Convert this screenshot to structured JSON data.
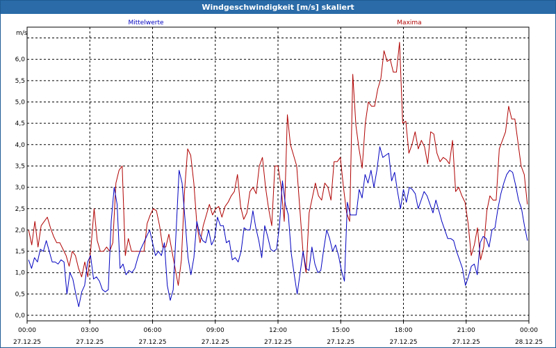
{
  "window": {
    "title": "Windgeschwindigkeit [m/s] skaliert"
  },
  "colors": {
    "titlebar": "#2a6ba8",
    "mean": "#0000c0",
    "max": "#b00000",
    "grid": "#000000"
  },
  "chart_data": {
    "type": "line",
    "title": "Windgeschwindigkeit [m/s] skaliert",
    "ylabel": "m/s",
    "xlabel": "",
    "ylim": [
      -0.1,
      6.55
    ],
    "xlim_hours": [
      0,
      24
    ],
    "y_ticks": [
      "0,0",
      "0,5",
      "1,0",
      "1,5",
      "2,0",
      "2,5",
      "3,0",
      "3,5",
      "4,0",
      "4,5",
      "5,0",
      "5,5",
      "6,0"
    ],
    "x_ticks": [
      {
        "time": "00:00",
        "date": "27.12.25"
      },
      {
        "time": "03:00",
        "date": "27.12.25"
      },
      {
        "time": "06:00",
        "date": "27.12.25"
      },
      {
        "time": "09:00",
        "date": "27.12.25"
      },
      {
        "time": "12:00",
        "date": "27.12.25"
      },
      {
        "time": "15:00",
        "date": "27.12.25"
      },
      {
        "time": "18:00",
        "date": "27.12.25"
      },
      {
        "time": "21:00",
        "date": "27.12.25"
      },
      {
        "time": "00:00",
        "date": "28.12.25"
      }
    ],
    "grid": true,
    "sample_interval_minutes": 10,
    "series": [
      {
        "name": "Mittelwerte",
        "color": "#0000c0",
        "values": [
          1.3,
          1.1,
          1.35,
          1.25,
          1.55,
          1.5,
          1.75,
          1.5,
          1.25,
          1.25,
          1.2,
          1.3,
          1.25,
          0.5,
          1.0,
          0.85,
          0.5,
          0.2,
          0.55,
          0.7,
          1.25,
          1.4,
          0.85,
          0.9,
          0.8,
          0.6,
          0.55,
          0.6,
          2.2,
          3.0,
          2.6,
          1.1,
          1.2,
          0.95,
          1.05,
          1.0,
          1.1,
          1.35,
          1.55,
          1.7,
          1.85,
          2.0,
          1.7,
          1.4,
          1.5,
          1.4,
          1.7,
          0.7,
          0.35,
          0.6,
          2.0,
          3.4,
          3.1,
          2.25,
          1.35,
          0.95,
          1.35,
          2.2,
          1.9,
          1.75,
          1.7,
          2.0,
          1.65,
          1.8,
          2.3,
          2.1,
          2.1,
          1.7,
          1.75,
          1.3,
          1.35,
          1.25,
          1.5,
          2.05,
          2.0,
          2.0,
          2.45,
          2.05,
          1.75,
          1.35,
          2.1,
          1.85,
          1.55,
          1.5,
          1.55,
          2.1,
          3.15,
          2.6,
          2.35,
          1.45,
          0.95,
          0.5,
          1.0,
          1.5,
          1.1,
          1.05,
          1.6,
          1.2,
          1.0,
          1.05,
          1.55,
          2.0,
          1.8,
          1.5,
          1.65,
          1.4,
          1.05,
          0.8,
          2.65,
          2.35,
          2.35,
          2.35,
          2.95,
          2.75,
          3.3,
          3.1,
          3.4,
          3.0,
          3.4,
          3.95,
          3.7,
          3.75,
          3.8,
          3.15,
          3.35,
          2.9,
          2.5,
          2.95,
          2.65,
          3.0,
          2.95,
          2.85,
          2.5,
          2.7,
          2.9,
          2.8,
          2.6,
          2.4,
          2.7,
          2.45,
          2.2,
          2.0,
          1.8,
          1.8,
          1.75,
          1.5,
          1.3,
          1.1,
          0.7,
          0.9,
          1.15,
          1.2,
          0.95,
          1.7,
          1.85,
          1.8,
          1.6,
          2.0,
          2.05,
          2.5,
          2.85,
          3.1,
          3.3,
          3.4,
          3.35,
          3.05,
          2.7,
          2.5,
          2.1,
          1.75
        ]
      },
      {
        "name": "Maxima",
        "color": "#b00000",
        "values": [
          2.0,
          1.65,
          2.2,
          1.6,
          2.1,
          2.2,
          2.3,
          2.05,
          1.85,
          1.7,
          1.7,
          1.55,
          1.4,
          1.15,
          1.5,
          1.4,
          1.1,
          0.9,
          1.25,
          0.9,
          1.6,
          2.5,
          1.75,
          1.5,
          1.5,
          1.6,
          1.5,
          1.7,
          3.1,
          3.4,
          3.5,
          1.4,
          1.8,
          1.5,
          1.5,
          1.5,
          1.5,
          1.5,
          2.15,
          2.35,
          2.5,
          2.45,
          2.1,
          1.6,
          1.6,
          1.9,
          1.5,
          1.1,
          0.7,
          1.3,
          2.9,
          3.9,
          3.75,
          3.1,
          2.1,
          1.7,
          2.1,
          2.35,
          2.6,
          2.35,
          2.5,
          2.55,
          2.3,
          2.55,
          2.65,
          2.8,
          2.9,
          3.3,
          2.55,
          2.25,
          2.4,
          2.9,
          3.0,
          2.85,
          3.5,
          3.7,
          3.0,
          2.5,
          2.1,
          3.5,
          3.5,
          3.0,
          2.2,
          4.7,
          4.0,
          3.75,
          3.5,
          2.5,
          1.5,
          1.0,
          2.4,
          2.75,
          3.1,
          2.8,
          2.7,
          3.1,
          3.0,
          2.7,
          3.6,
          3.6,
          3.7,
          3.0,
          2.4,
          2.2,
          5.65,
          4.45,
          3.9,
          3.45,
          4.5,
          5.0,
          4.9,
          4.9,
          5.3,
          5.55,
          6.2,
          5.95,
          6.0,
          5.7,
          5.7,
          6.4,
          4.5,
          4.55,
          3.8,
          4.0,
          4.3,
          3.9,
          4.1,
          3.95,
          3.55,
          4.3,
          4.25,
          3.8,
          3.6,
          3.7,
          3.65,
          3.55,
          4.1,
          2.9,
          3.0,
          2.8,
          2.65,
          2.15,
          1.4,
          1.65,
          2.05,
          1.3,
          1.6,
          2.45,
          2.8,
          2.7,
          2.7,
          3.9,
          4.1,
          4.3,
          4.9,
          4.6,
          4.6,
          4.05,
          3.5,
          3.3,
          2.6
        ]
      }
    ]
  }
}
